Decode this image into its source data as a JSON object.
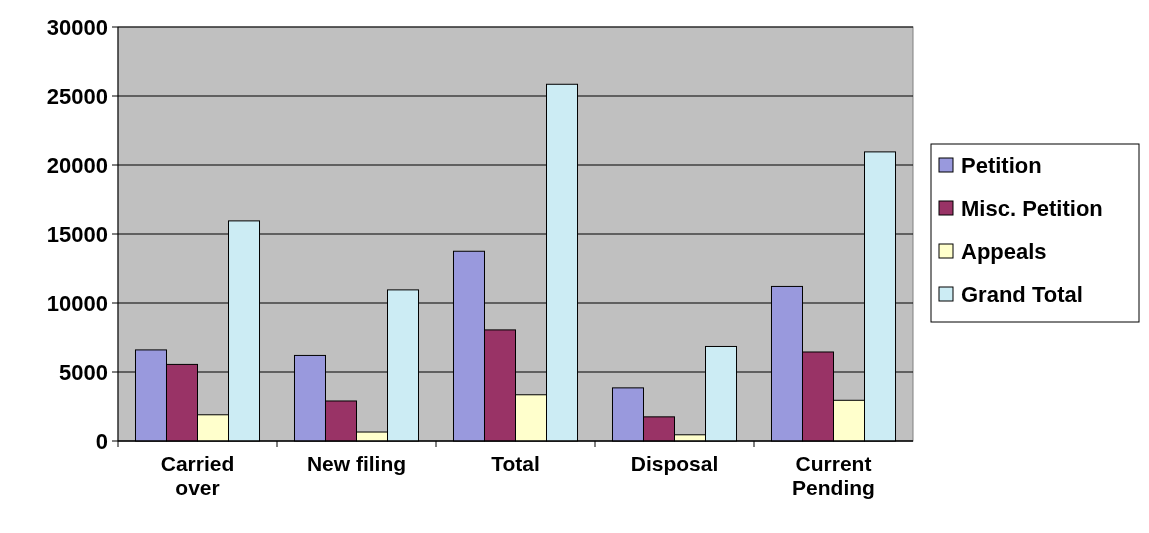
{
  "chart_data": {
    "type": "bar",
    "categories": [
      "Carried over",
      "New filing",
      "Total",
      "Disposal",
      "Current Pending"
    ],
    "series": [
      {
        "name": "Petition",
        "color": "#9999dd",
        "values": [
          6600,
          6200,
          13750,
          3850,
          11200
        ]
      },
      {
        "name": "Misc. Petition",
        "color": "#993366",
        "values": [
          5550,
          2900,
          8050,
          1750,
          6450
        ]
      },
      {
        "name": "Appeals",
        "color": "#ffffcc",
        "values": [
          1900,
          650,
          3350,
          450,
          2950
        ]
      },
      {
        "name": "Grand Total",
        "color": "#ccecf4",
        "values": [
          15950,
          10950,
          25850,
          6850,
          20950
        ]
      }
    ],
    "ylim": [
      0,
      30000
    ],
    "yticks": [
      0,
      5000,
      10000,
      15000,
      20000,
      25000,
      30000
    ],
    "grid": "y",
    "legend": "right"
  }
}
